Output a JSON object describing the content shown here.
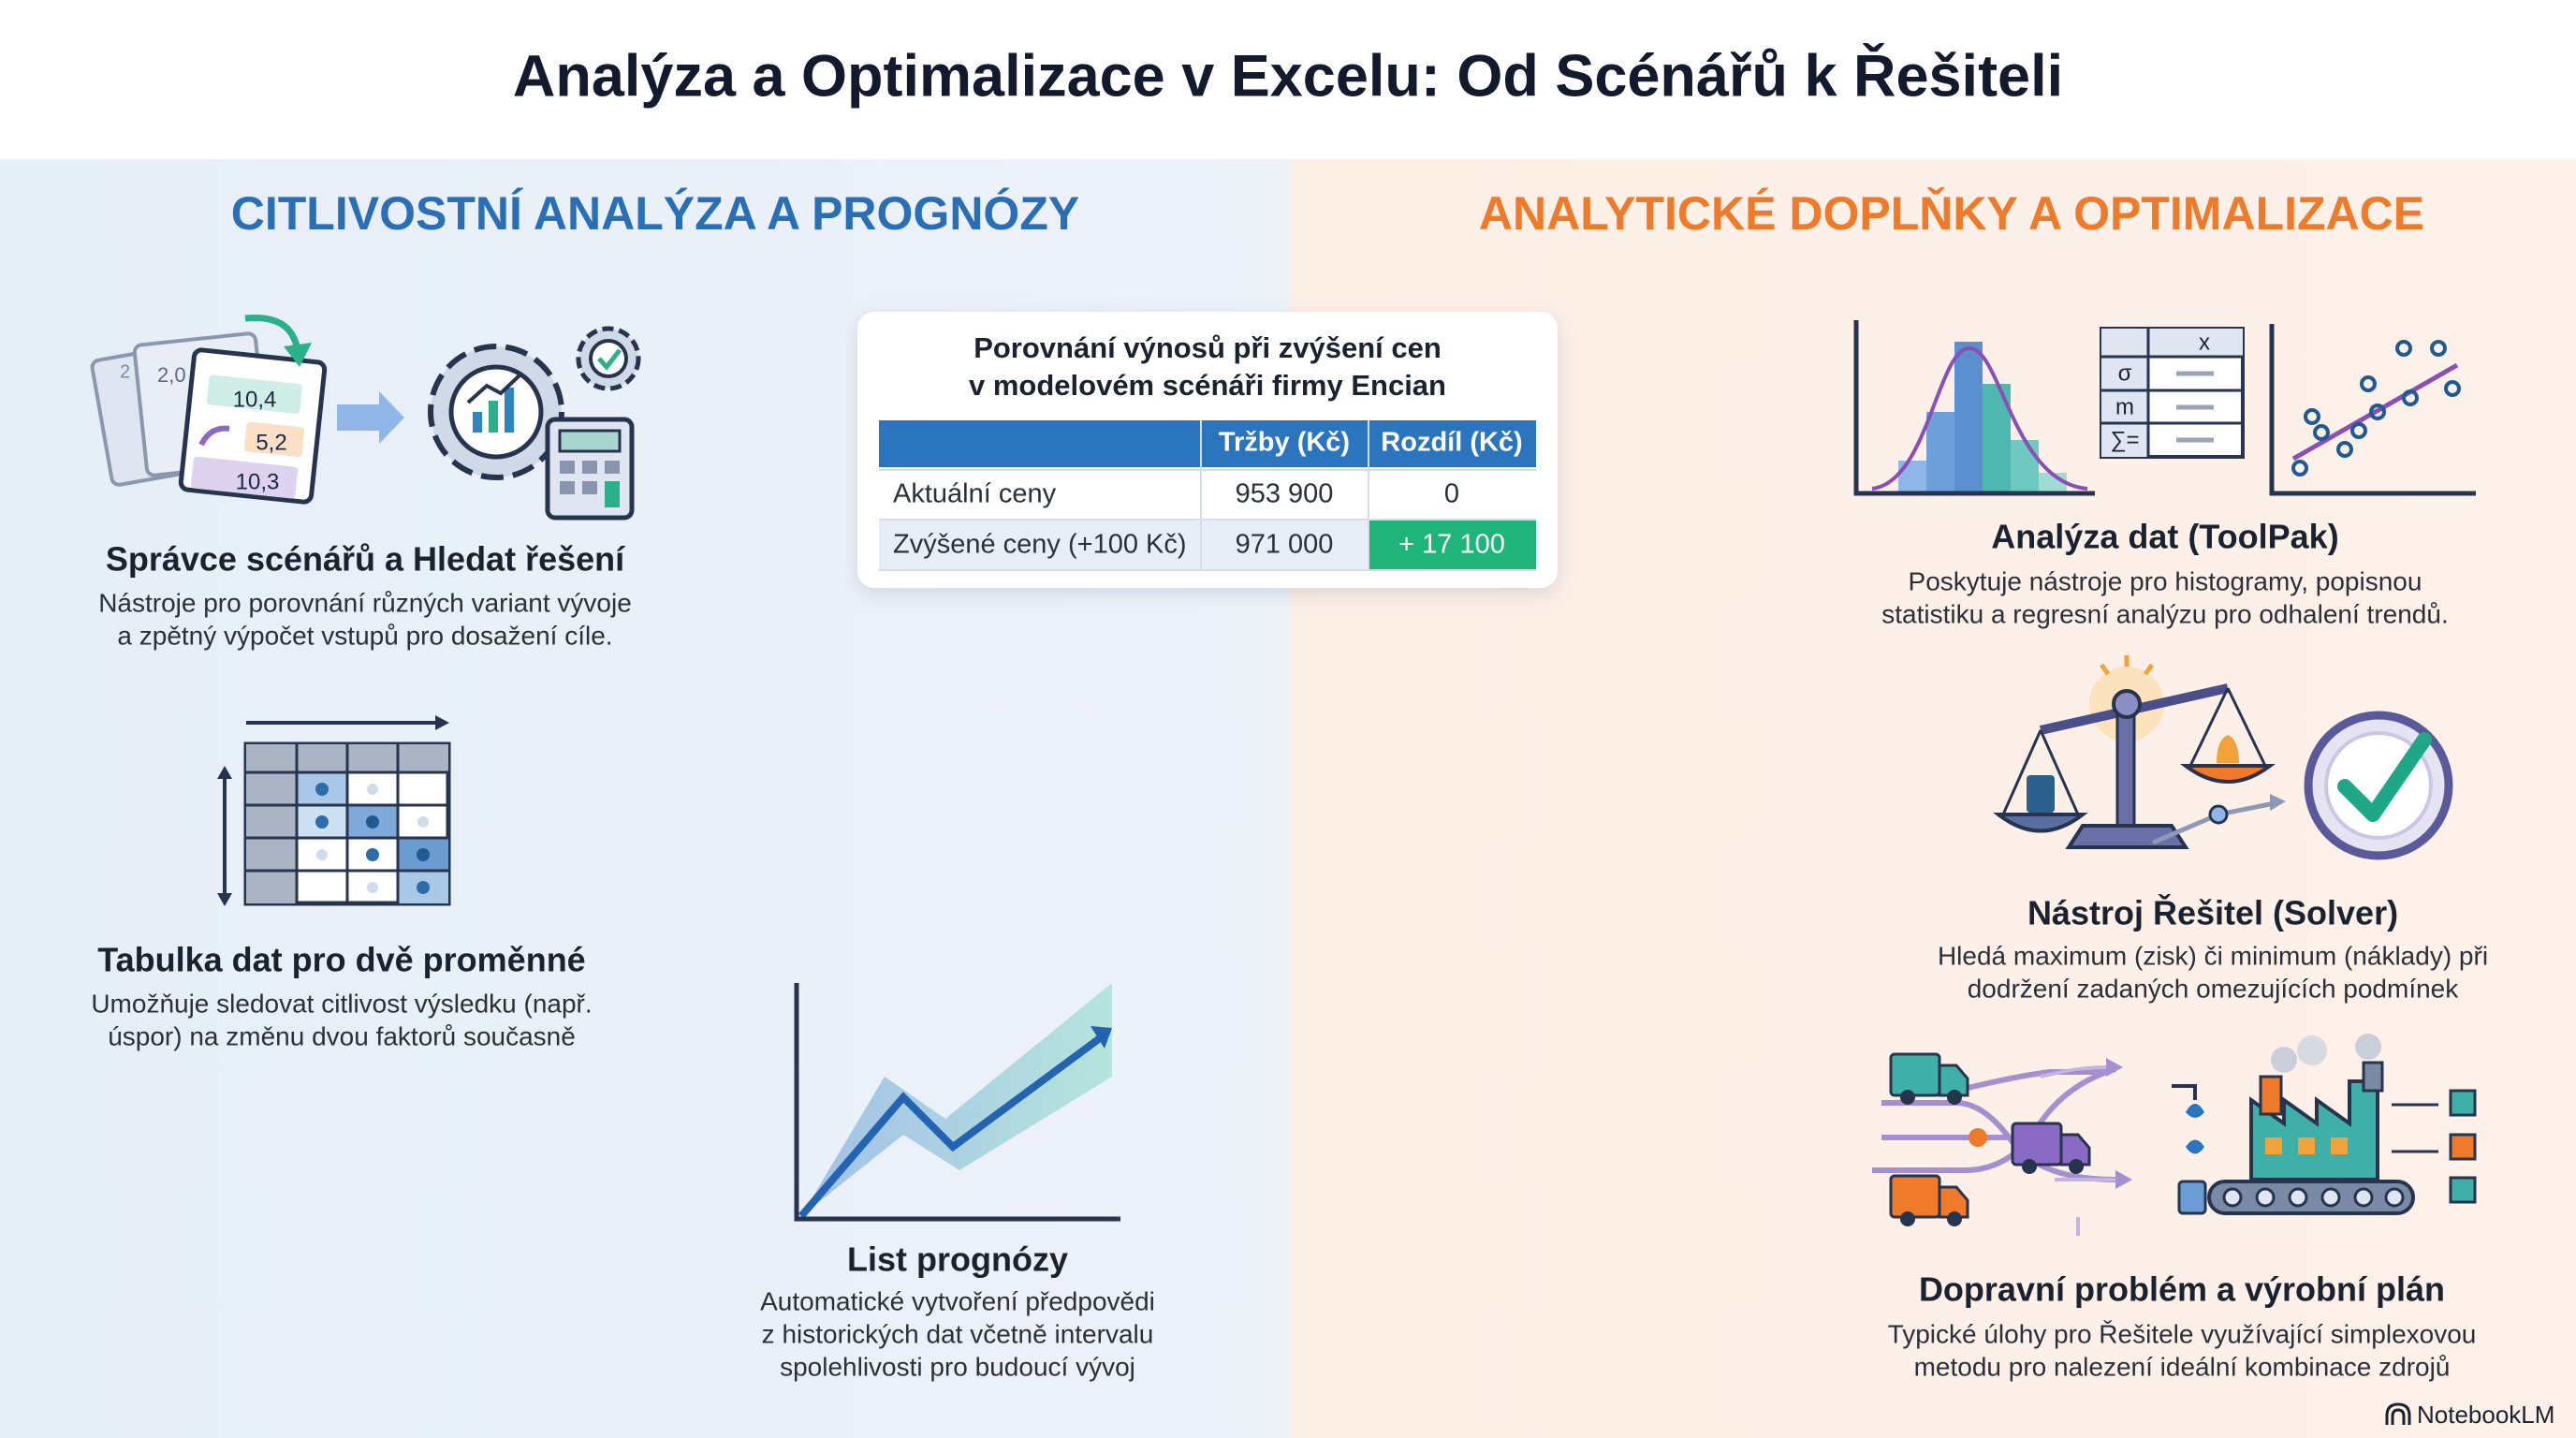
{
  "header": {
    "title": "Analýza a Optimalizace v Excelu: Od Scénářů k Řešiteli"
  },
  "left": {
    "heading": "CITLIVOSTNÍ ANALÝZA A PROGNÓZY",
    "items": [
      {
        "title": "Správce scénářů a Hledat řešení",
        "description": [
          "Nástroje pro porovnání různých variant vývoje",
          "a zpětný výpočet vstupů pro dosažení cíle."
        ],
        "icon_labels": [
          "2",
          "2,0",
          "10,4",
          "5,2",
          "10,3"
        ]
      },
      {
        "title": "Tabulka dat pro dvě proměnné",
        "description": [
          "Umožňuje sledovat citlivost výsledku (např.",
          "úspor) na změnu dvou faktorů současně"
        ]
      },
      {
        "title": "List prognózy",
        "description": [
          "Automatické vytvoření předpovědi",
          "z historických dat včetně intervalu",
          "spolehlivosti pro budoucí vývoj"
        ]
      }
    ],
    "table": {
      "title": [
        "Porovnání výnosů při zvýšení cen",
        "v modelovém scénáři firmy Encian"
      ],
      "columns": [
        "Tržby (Kč)",
        "Rozdíl (Kč)"
      ],
      "rows": [
        [
          "Aktuální ceny",
          "953 900",
          "0"
        ],
        [
          "Zvýšené ceny (+100 Kč)",
          "971 000",
          "+ 17 100"
        ]
      ]
    }
  },
  "right": {
    "heading": "ANALYTICKÉ DOPLŇKY A OPTIMALIZACE",
    "items": [
      {
        "title": "Analýza dat (ToolPak)",
        "description": [
          "Poskytuje nástroje pro histogramy, popisnou",
          "statistiku a regresní analýzu pro odhalení trendů."
        ],
        "icon_labels": [
          "x",
          "σ",
          "m",
          "∑="
        ]
      },
      {
        "title": "Nástroj Řešitel (Solver)",
        "description": [
          "Hledá maximum (zisk) či minimum (náklady) při",
          "dodržení zadaných omezujících podmínek"
        ]
      },
      {
        "title": "Dopravní problém a výrobní plán",
        "description": [
          "Typické úlohy pro Řešitele využívající simplexovou",
          "metodu pro nalezení ideální kombinace zdrojů"
        ]
      }
    ]
  },
  "footer": {
    "brand": "NotebookLM"
  }
}
